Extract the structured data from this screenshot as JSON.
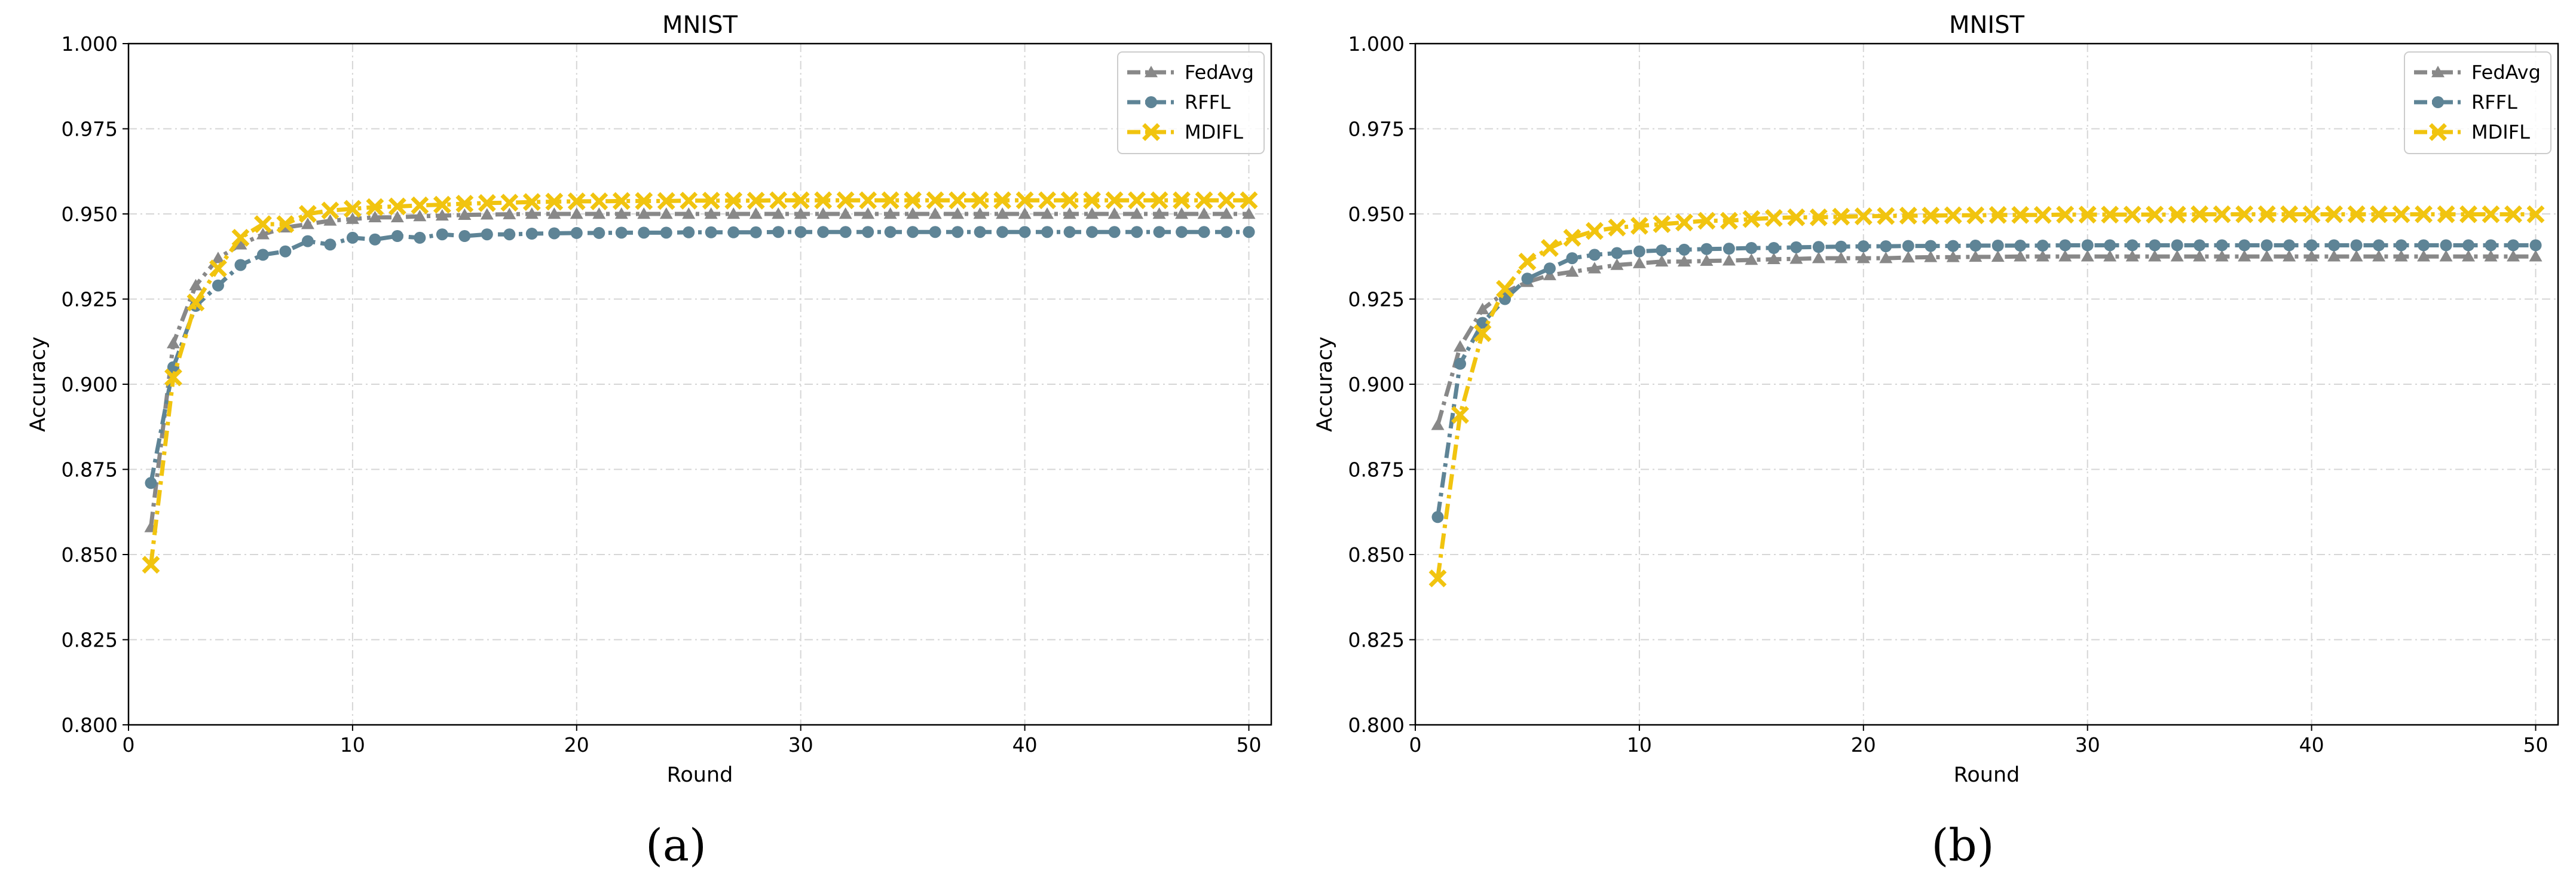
{
  "chart_data": [
    {
      "type": "line",
      "title": "MNIST",
      "xlabel": "Round",
      "ylabel": "Accuracy",
      "caption": "(a)",
      "xlim": [
        0,
        51
      ],
      "ylim": [
        0.8,
        1.0
      ],
      "xticks": [
        0,
        10,
        20,
        30,
        40,
        50
      ],
      "yticks": [
        0.8,
        0.825,
        0.85,
        0.875,
        0.9,
        0.925,
        0.95,
        0.975,
        1.0
      ],
      "xtick_labels": [
        "0",
        "10",
        "20",
        "30",
        "40",
        "50"
      ],
      "ytick_labels": [
        "0.800",
        "0.825",
        "0.850",
        "0.875",
        "0.900",
        "0.925",
        "0.950",
        "0.975",
        "1.000"
      ],
      "grid": true,
      "legend_position": "top-right",
      "x": [
        1,
        2,
        3,
        4,
        5,
        6,
        7,
        8,
        9,
        10,
        11,
        12,
        13,
        14,
        15,
        16,
        17,
        18,
        19,
        20,
        21,
        22,
        23,
        24,
        25,
        26,
        27,
        28,
        29,
        30,
        31,
        32,
        33,
        34,
        35,
        36,
        37,
        38,
        39,
        40,
        41,
        42,
        43,
        44,
        45,
        46,
        47,
        48,
        49,
        50
      ],
      "series": [
        {
          "name": "FedAvg",
          "color": "#888888",
          "marker": "triangle",
          "values": [
            0.858,
            0.912,
            0.929,
            0.937,
            0.941,
            0.944,
            0.946,
            0.947,
            0.948,
            0.9485,
            0.949,
            0.949,
            0.9493,
            0.9495,
            0.9497,
            0.9498,
            0.9499,
            0.95,
            0.95,
            0.95,
            0.95,
            0.95,
            0.95,
            0.95,
            0.95,
            0.95,
            0.95,
            0.95,
            0.95,
            0.95,
            0.95,
            0.95,
            0.95,
            0.95,
            0.95,
            0.95,
            0.95,
            0.95,
            0.95,
            0.95,
            0.95,
            0.95,
            0.95,
            0.95,
            0.95,
            0.95,
            0.95,
            0.95,
            0.95,
            0.95
          ]
        },
        {
          "name": "RFFL",
          "color": "#5e8496",
          "marker": "circle",
          "values": [
            0.871,
            0.905,
            0.923,
            0.929,
            0.935,
            0.938,
            0.939,
            0.942,
            0.941,
            0.943,
            0.9425,
            0.9435,
            0.943,
            0.944,
            0.9435,
            0.944,
            0.944,
            0.9442,
            0.9443,
            0.9444,
            0.9444,
            0.9445,
            0.9445,
            0.9445,
            0.9446,
            0.9446,
            0.9446,
            0.9446,
            0.9447,
            0.9447,
            0.9447,
            0.9447,
            0.9447,
            0.9447,
            0.9447,
            0.9447,
            0.9447,
            0.9447,
            0.9447,
            0.9447,
            0.9447,
            0.9447,
            0.9447,
            0.9447,
            0.9447,
            0.9447,
            0.9447,
            0.9447,
            0.9447,
            0.9447
          ]
        },
        {
          "name": "MDIFL",
          "color": "#f1c40f",
          "marker": "x",
          "values": [
            0.847,
            0.902,
            0.924,
            0.934,
            0.943,
            0.947,
            0.947,
            0.95,
            0.951,
            0.9515,
            0.952,
            0.9522,
            0.9525,
            0.9527,
            0.953,
            0.9532,
            0.9533,
            0.9535,
            0.9536,
            0.9537,
            0.9537,
            0.9538,
            0.9538,
            0.9538,
            0.9539,
            0.9539,
            0.9539,
            0.9539,
            0.954,
            0.954,
            0.954,
            0.954,
            0.954,
            0.954,
            0.954,
            0.954,
            0.954,
            0.954,
            0.954,
            0.954,
            0.954,
            0.954,
            0.954,
            0.954,
            0.954,
            0.954,
            0.954,
            0.954,
            0.954,
            0.954
          ]
        }
      ]
    },
    {
      "type": "line",
      "title": "MNIST",
      "xlabel": "Round",
      "ylabel": "Accuracy",
      "caption": "(b)",
      "xlim": [
        0,
        51
      ],
      "ylim": [
        0.8,
        1.0
      ],
      "xticks": [
        0,
        10,
        20,
        30,
        40,
        50
      ],
      "yticks": [
        0.8,
        0.825,
        0.85,
        0.875,
        0.9,
        0.925,
        0.95,
        0.975,
        1.0
      ],
      "xtick_labels": [
        "0",
        "10",
        "20",
        "30",
        "40",
        "50"
      ],
      "ytick_labels": [
        "0.800",
        "0.825",
        "0.850",
        "0.875",
        "0.900",
        "0.925",
        "0.950",
        "0.975",
        "1.000"
      ],
      "grid": true,
      "legend_position": "top-right",
      "x": [
        1,
        2,
        3,
        4,
        5,
        6,
        7,
        8,
        9,
        10,
        11,
        12,
        13,
        14,
        15,
        16,
        17,
        18,
        19,
        20,
        21,
        22,
        23,
        24,
        25,
        26,
        27,
        28,
        29,
        30,
        31,
        32,
        33,
        34,
        35,
        36,
        37,
        38,
        39,
        40,
        41,
        42,
        43,
        44,
        45,
        46,
        47,
        48,
        49,
        50
      ],
      "series": [
        {
          "name": "FedAvg",
          "color": "#888888",
          "marker": "triangle",
          "values": [
            0.888,
            0.911,
            0.922,
            0.927,
            0.93,
            0.932,
            0.933,
            0.934,
            0.935,
            0.9355,
            0.936,
            0.936,
            0.9362,
            0.9363,
            0.9365,
            0.9367,
            0.9368,
            0.937,
            0.937,
            0.937,
            0.937,
            0.9372,
            0.9373,
            0.9373,
            0.9374,
            0.9374,
            0.9375,
            0.9375,
            0.9375,
            0.9375,
            0.9375,
            0.9375,
            0.9375,
            0.9375,
            0.9375,
            0.9375,
            0.9375,
            0.9375,
            0.9375,
            0.9375,
            0.9375,
            0.9375,
            0.9375,
            0.9375,
            0.9375,
            0.9375,
            0.9375,
            0.9375,
            0.9375,
            0.9375
          ]
        },
        {
          "name": "RFFL",
          "color": "#5e8496",
          "marker": "circle",
          "values": [
            0.861,
            0.906,
            0.918,
            0.925,
            0.931,
            0.934,
            0.937,
            0.938,
            0.9385,
            0.939,
            0.9393,
            0.9395,
            0.9397,
            0.9398,
            0.94,
            0.94,
            0.9402,
            0.9403,
            0.9404,
            0.9405,
            0.9405,
            0.9406,
            0.9406,
            0.9406,
            0.9407,
            0.9407,
            0.9407,
            0.9407,
            0.9408,
            0.9408,
            0.9408,
            0.9408,
            0.9408,
            0.9408,
            0.9408,
            0.9408,
            0.9408,
            0.9408,
            0.9408,
            0.9408,
            0.9408,
            0.9408,
            0.9408,
            0.9408,
            0.9408,
            0.9408,
            0.9408,
            0.9408,
            0.9408,
            0.9408
          ]
        },
        {
          "name": "MDIFL",
          "color": "#f1c40f",
          "marker": "x",
          "values": [
            0.843,
            0.891,
            0.915,
            0.928,
            0.936,
            0.94,
            0.943,
            0.945,
            0.946,
            0.9465,
            0.947,
            0.9475,
            0.948,
            0.948,
            0.9485,
            0.9488,
            0.949,
            0.949,
            0.9492,
            0.9493,
            0.9494,
            0.9495,
            0.9495,
            0.9496,
            0.9496,
            0.9497,
            0.9497,
            0.9497,
            0.9498,
            0.9498,
            0.9498,
            0.9498,
            0.9498,
            0.9498,
            0.9499,
            0.9499,
            0.9499,
            0.9499,
            0.9499,
            0.9499,
            0.9499,
            0.9499,
            0.9499,
            0.9499,
            0.9499,
            0.9499,
            0.9499,
            0.9499,
            0.9499,
            0.9499
          ]
        }
      ]
    }
  ]
}
